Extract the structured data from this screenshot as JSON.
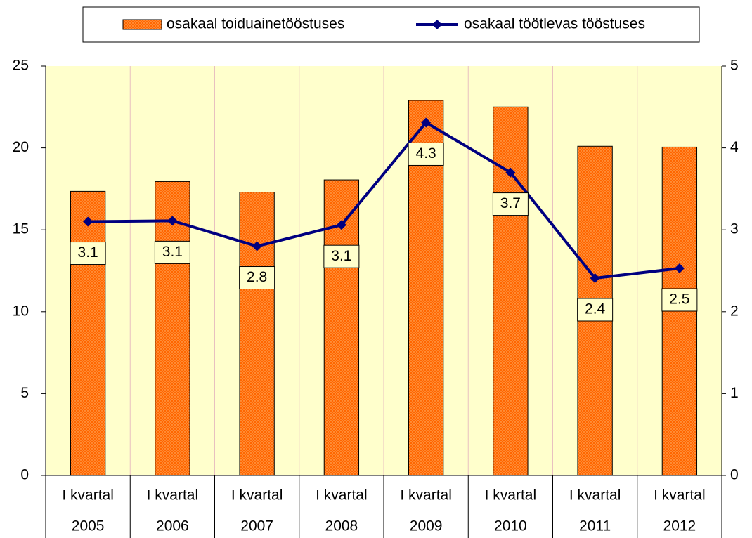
{
  "chart_data": {
    "type": "bar_line",
    "categories": [
      [
        "I kvartal",
        "2005"
      ],
      [
        "I kvartal",
        "2006"
      ],
      [
        "I kvartal",
        "2007"
      ],
      [
        "I kvartal",
        "2008"
      ],
      [
        "I kvartal",
        "2009"
      ],
      [
        "I kvartal",
        "2010"
      ],
      [
        "I kvartal",
        "2011"
      ],
      [
        "I kvartal",
        "2012"
      ]
    ],
    "series": [
      {
        "name": "osakaal toiduainetööstuses",
        "type": "bar",
        "color": "#ff6600",
        "values": [
          17.35,
          17.95,
          17.3,
          18.05,
          22.9,
          22.5,
          20.1,
          20.05
        ]
      },
      {
        "name": "osakaal töötlevas tööstuses",
        "type": "line",
        "axis": "y2",
        "color": "#000080",
        "values": [
          3.1,
          3.11,
          2.8,
          3.06,
          4.31,
          3.7,
          2.41,
          2.53
        ],
        "value_labels": [
          "3.1",
          "3.1",
          "2.8",
          "3.1",
          "4.3",
          "3.7",
          "2.4",
          "2.5"
        ]
      }
    ],
    "ylim": [
      0,
      25
    ],
    "yticks": [
      0,
      5,
      10,
      15,
      20,
      25
    ],
    "y2lim": [
      0,
      5
    ],
    "y2ticks": [
      0,
      1,
      2,
      3,
      4,
      5
    ],
    "legend": "top"
  }
}
